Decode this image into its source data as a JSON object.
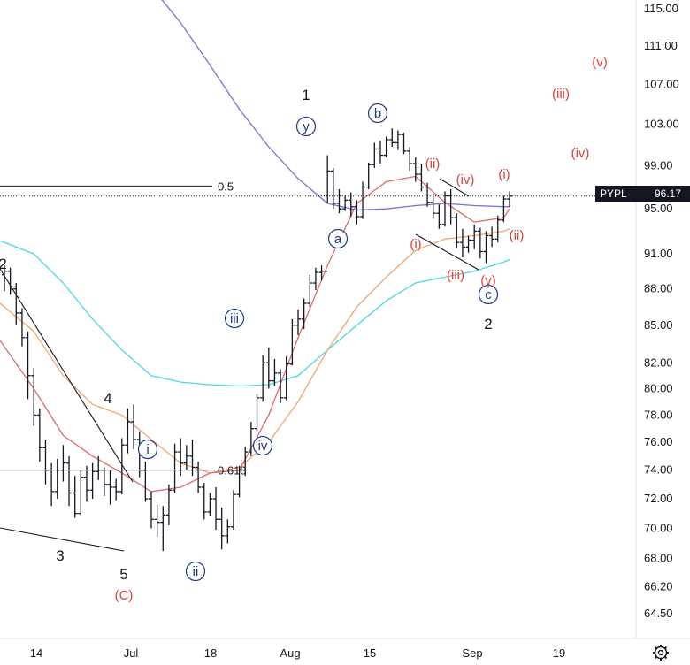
{
  "chart_data": {
    "type": "ohlc-bar",
    "ticker": "PYPL",
    "last_price": "96.17",
    "y_axis": {
      "scale": "log",
      "ticks": [
        "115.00",
        "111.00",
        "107.00",
        "103.00",
        "99.00",
        "95.00",
        "91.00",
        "88.00",
        "85.00",
        "82.00",
        "80.00",
        "78.00",
        "76.00",
        "74.00",
        "72.00",
        "70.00",
        "68.00",
        "66.20",
        "64.50"
      ],
      "range": [
        63.0,
        116.0
      ]
    },
    "x_axis": {
      "ticks": [
        "14",
        "Jul",
        "18",
        "Aug",
        "15",
        "Sep",
        "19"
      ]
    },
    "price_bars": [
      [
        0,
        89.2,
        90.0,
        87.8,
        89.5
      ],
      [
        1,
        89.5,
        89.8,
        87.5,
        88.0
      ],
      [
        2,
        88.0,
        88.5,
        85.0,
        86.0
      ],
      [
        3,
        86.0,
        86.4,
        83.3,
        84.0
      ],
      [
        4,
        84.0,
        84.5,
        79.2,
        81.0
      ],
      [
        5,
        81.0,
        81.6,
        77.2,
        78.0
      ],
      [
        6,
        78.0,
        78.5,
        74.6,
        75.6
      ],
      [
        7,
        75.6,
        76.2,
        73.0,
        74.0
      ],
      [
        8,
        74.0,
        74.5,
        71.5,
        72.5
      ],
      [
        9,
        72.5,
        74.8,
        72.0,
        74.0
      ],
      [
        10,
        74.0,
        75.8,
        73.2,
        74.5
      ],
      [
        11,
        74.5,
        75.0,
        71.5,
        72.4
      ],
      [
        12,
        72.4,
        73.6,
        70.7,
        71.0
      ],
      [
        13,
        71.0,
        74.0,
        70.9,
        73.5
      ],
      [
        14,
        73.5,
        74.3,
        71.8,
        72.6
      ],
      [
        15,
        72.6,
        74.5,
        72.0,
        73.9
      ],
      [
        16,
        73.9,
        75.0,
        73.3,
        74.0
      ],
      [
        17,
        74.0,
        74.2,
        72.2,
        73.0
      ],
      [
        18,
        73.0,
        74.0,
        71.6,
        72.8
      ],
      [
        19,
        72.8,
        73.4,
        71.9,
        72.5
      ],
      [
        20,
        72.5,
        76.3,
        72.3,
        75.8
      ],
      [
        21,
        75.8,
        78.5,
        75.2,
        77.5
      ],
      [
        22,
        77.5,
        78.8,
        75.5,
        76.2
      ],
      [
        23,
        76.2,
        76.8,
        73.5,
        74.0
      ],
      [
        24,
        74.0,
        74.6,
        71.8,
        72.0
      ],
      [
        25,
        72.0,
        72.5,
        70.0,
        70.6
      ],
      [
        26,
        70.6,
        71.6,
        69.4,
        70.4
      ],
      [
        27,
        70.4,
        71.5,
        68.5,
        70.9
      ],
      [
        28,
        70.9,
        73.0,
        70.2,
        72.6
      ],
      [
        29,
        72.6,
        75.9,
        72.4,
        75.3
      ],
      [
        30,
        75.3,
        76.3,
        73.6,
        74.5
      ],
      [
        31,
        74.5,
        75.8,
        74.0,
        75.0
      ],
      [
        32,
        75.0,
        76.2,
        73.6,
        74.2
      ],
      [
        33,
        74.2,
        74.6,
        72.4,
        72.8
      ],
      [
        34,
        72.8,
        73.1,
        70.6,
        71.1
      ],
      [
        35,
        71.1,
        72.4,
        70.8,
        72.0
      ],
      [
        36,
        72.0,
        72.8,
        69.9,
        70.6
      ],
      [
        37,
        70.6,
        71.4,
        68.6,
        69.5
      ],
      [
        38,
        69.5,
        70.6,
        69.0,
        70.1
      ],
      [
        39,
        70.1,
        72.6,
        69.9,
        72.3
      ],
      [
        40,
        72.3,
        74.3,
        72.1,
        74.0
      ],
      [
        41,
        74.0,
        75.7,
        73.6,
        75.3
      ],
      [
        42,
        75.3,
        77.5,
        75.0,
        77.0
      ],
      [
        43,
        77.0,
        79.6,
        76.8,
        79.3
      ],
      [
        44,
        79.3,
        82.6,
        79.0,
        82.0
      ],
      [
        45,
        82.0,
        83.2,
        80.0,
        80.6
      ],
      [
        46,
        80.6,
        82.3,
        80.2,
        81.2
      ],
      [
        47,
        81.2,
        81.5,
        78.9,
        79.3
      ],
      [
        48,
        79.3,
        82.5,
        79.1,
        81.9
      ],
      [
        49,
        81.9,
        85.5,
        81.8,
        85.0
      ],
      [
        50,
        85.0,
        86.3,
        84.2,
        85.5
      ],
      [
        51,
        85.5,
        87.2,
        84.7,
        86.8
      ],
      [
        52,
        86.8,
        89.2,
        86.5,
        88.5
      ],
      [
        53,
        88.5,
        89.8,
        87.9,
        89.4
      ],
      [
        54,
        89.4,
        90.0,
        88.7,
        89.5
      ],
      [
        55,
        89.5,
        100.0,
        95.5,
        98.5
      ],
      [
        56,
        98.5,
        98.8,
        95.0,
        95.5
      ],
      [
        57,
        95.5,
        96.8,
        94.6,
        95.0
      ],
      [
        58,
        95.0,
        96.2,
        94.8,
        95.8
      ],
      [
        59,
        95.8,
        96.5,
        94.3,
        95.2
      ],
      [
        60,
        95.2,
        95.8,
        93.6,
        94.3
      ],
      [
        61,
        94.3,
        97.5,
        94.1,
        97.0
      ],
      [
        62,
        97.0,
        99.3,
        96.8,
        99.1
      ],
      [
        63,
        99.1,
        101.2,
        98.8,
        100.6
      ],
      [
        64,
        100.6,
        101.4,
        99.2,
        100.0
      ],
      [
        65,
        100.0,
        101.8,
        99.8,
        101.5
      ],
      [
        66,
        101.5,
        102.6,
        100.8,
        101.2
      ],
      [
        67,
        101.2,
        102.4,
        100.5,
        102.0
      ],
      [
        68,
        102.0,
        102.2,
        100.1,
        100.4
      ],
      [
        69,
        100.4,
        100.8,
        98.5,
        99.2
      ],
      [
        70,
        99.2,
        99.8,
        97.5,
        98.2
      ],
      [
        71,
        98.2,
        99.2,
        96.6,
        97.0
      ],
      [
        72,
        97.0,
        97.4,
        95.2,
        95.6
      ],
      [
        73,
        95.6,
        96.4,
        94.1,
        94.6
      ],
      [
        74,
        94.6,
        95.4,
        93.2,
        93.6
      ],
      [
        75,
        93.6,
        96.6,
        93.4,
        96.2
      ],
      [
        76,
        96.2,
        96.8,
        93.6,
        94.2
      ],
      [
        77,
        94.2,
        94.6,
        91.5,
        92.0
      ],
      [
        78,
        92.0,
        93.2,
        90.7,
        91.6
      ],
      [
        79,
        91.6,
        92.6,
        91.1,
        92.2
      ],
      [
        80,
        92.2,
        93.6,
        91.4,
        93.0
      ],
      [
        81,
        93.0,
        93.3,
        90.6,
        91.2
      ],
      [
        82,
        91.2,
        93.0,
        90.2,
        92.6
      ],
      [
        83,
        92.6,
        93.4,
        91.6,
        92.3
      ],
      [
        84,
        92.3,
        94.4,
        92.0,
        94.0
      ],
      [
        85,
        94.0,
        96.2,
        93.8,
        95.9
      ],
      [
        86,
        95.9,
        96.6,
        95.2,
        96.17
      ]
    ],
    "moving_averages": [
      {
        "color": "#7b70d6",
        "values": [
          [
            -2,
            131.0
          ],
          [
            5,
            129.5
          ],
          [
            10,
            127.5
          ],
          [
            15,
            125.0
          ],
          [
            20,
            121.5
          ],
          [
            25,
            117.5
          ],
          [
            30,
            113.5
          ],
          [
            35,
            109.0
          ],
          [
            40,
            104.5
          ],
          [
            45,
            100.8
          ],
          [
            50,
            97.8
          ],
          [
            55,
            95.5
          ],
          [
            60,
            94.9
          ],
          [
            65,
            95.0
          ],
          [
            70,
            95.3
          ],
          [
            75,
            95.5
          ],
          [
            80,
            95.3
          ],
          [
            85,
            95.2
          ],
          [
            86,
            95.2
          ]
        ]
      },
      {
        "color": "#4dd8e0",
        "values": [
          [
            -2,
            92.4
          ],
          [
            5,
            91.0
          ],
          [
            10,
            88.5
          ],
          [
            15,
            85.5
          ],
          [
            20,
            83.0
          ],
          [
            25,
            81.0
          ],
          [
            30,
            80.5
          ],
          [
            35,
            80.3
          ],
          [
            40,
            80.2
          ],
          [
            45,
            80.3
          ],
          [
            50,
            81.0
          ],
          [
            55,
            83.0
          ],
          [
            60,
            85.0
          ],
          [
            65,
            87.0
          ],
          [
            70,
            88.5
          ],
          [
            75,
            89.0
          ],
          [
            80,
            89.5
          ],
          [
            85,
            90.3
          ],
          [
            86,
            90.5
          ]
        ]
      },
      {
        "color": "#f3a46b",
        "values": [
          [
            -2,
            87.3
          ],
          [
            5,
            84.5
          ],
          [
            10,
            81.0
          ],
          [
            15,
            78.8
          ],
          [
            20,
            78.0
          ],
          [
            25,
            76.2
          ],
          [
            30,
            74.5
          ],
          [
            35,
            73.8
          ],
          [
            40,
            74.2
          ],
          [
            45,
            76.0
          ],
          [
            50,
            79.0
          ],
          [
            55,
            83.0
          ],
          [
            60,
            86.5
          ],
          [
            65,
            89.0
          ],
          [
            70,
            91.3
          ],
          [
            75,
            92.3
          ],
          [
            80,
            92.6
          ],
          [
            85,
            93.0
          ],
          [
            86,
            93.2
          ]
        ]
      },
      {
        "color": "#e06a6a",
        "values": [
          [
            -2,
            84.6
          ],
          [
            5,
            80.0
          ],
          [
            10,
            76.5
          ],
          [
            15,
            75.0
          ],
          [
            20,
            73.8
          ],
          [
            25,
            72.5
          ],
          [
            30,
            72.8
          ],
          [
            35,
            73.8
          ],
          [
            40,
            74.0
          ],
          [
            45,
            78.0
          ],
          [
            50,
            84.0
          ],
          [
            55,
            90.0
          ],
          [
            60,
            95.5
          ],
          [
            65,
            97.5
          ],
          [
            70,
            98.0
          ],
          [
            75,
            95.6
          ],
          [
            80,
            93.8
          ],
          [
            85,
            94.2
          ],
          [
            86,
            95.0
          ]
        ]
      }
    ],
    "levels": [
      {
        "label": "0.5",
        "value": 97.1
      },
      {
        "label": "0.618",
        "value": 74.0
      }
    ],
    "wave_labels": [
      {
        "text": "1",
        "style": "dark"
      },
      {
        "text": "2",
        "style": "dark"
      },
      {
        "text": "2",
        "style": "dark"
      },
      {
        "text": "3",
        "style": "dark"
      },
      {
        "text": "4",
        "style": "dark"
      },
      {
        "text": "5",
        "style": "dark"
      },
      {
        "text": "(C)",
        "style": "red"
      },
      {
        "text": "i",
        "style": "circle"
      },
      {
        "text": "ii",
        "style": "circle"
      },
      {
        "text": "iii",
        "style": "circle"
      },
      {
        "text": "iv",
        "style": "circle"
      },
      {
        "text": "y",
        "style": "circle"
      },
      {
        "text": "a",
        "style": "circle"
      },
      {
        "text": "b",
        "style": "circle"
      },
      {
        "text": "c",
        "style": "circle"
      },
      {
        "text": "(i)",
        "style": "red"
      },
      {
        "text": "(ii)",
        "style": "red"
      },
      {
        "text": "(iii)",
        "style": "red"
      },
      {
        "text": "(iv)",
        "style": "red"
      },
      {
        "text": "(v)",
        "style": "red"
      },
      {
        "text": "(i)",
        "style": "red"
      },
      {
        "text": "(ii)",
        "style": "red"
      },
      {
        "text": "(iii)",
        "style": "red"
      },
      {
        "text": "(iv)",
        "style": "red"
      },
      {
        "text": "(v)",
        "style": "red"
      }
    ]
  },
  "icons": {
    "settings": "gear-icon"
  }
}
